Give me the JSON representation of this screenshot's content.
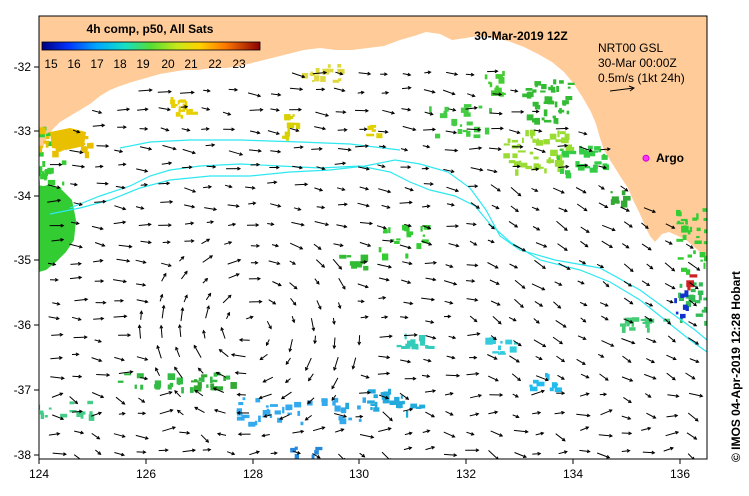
{
  "legend": {
    "title": "4h comp, p50, All Sats",
    "ticks": [
      "15",
      "16",
      "17",
      "18",
      "19",
      "20",
      "21",
      "22",
      "23"
    ]
  },
  "header": {
    "datetime": "30-Mar-2019 12Z"
  },
  "currents_info": {
    "source": "NRT00 GSL",
    "time": "30-Mar 00:00Z",
    "scale": "0.5m/s (1kt 24h)"
  },
  "argo": {
    "label": "Argo",
    "lon": 135.45,
    "lat": -33.6
  },
  "axes": {
    "x_ticks": [
      "124",
      "126",
      "128",
      "130",
      "132",
      "134",
      "136"
    ],
    "y_ticks": [
      "-32",
      "-33",
      "-34",
      "-35",
      "-36",
      "-37",
      "-38"
    ],
    "lon_range": [
      124,
      136.6
    ],
    "lat_range": [
      -31.45,
      -38.15
    ]
  },
  "credit": "© IMOS 04-Apr-2019 12:28 Hobart",
  "colors": {
    "land": "#ffcc99",
    "contour": "#2ee8f0",
    "argo": "#ff33ff"
  }
}
